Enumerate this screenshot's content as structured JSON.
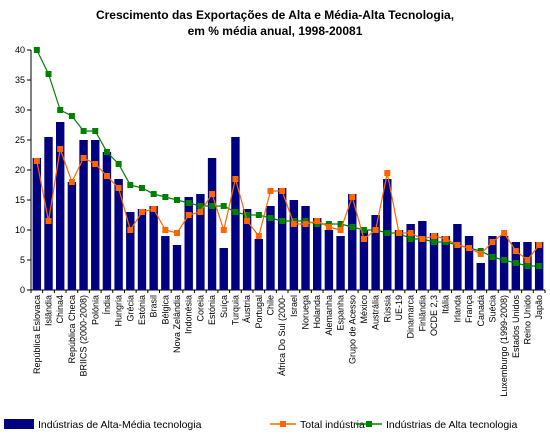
{
  "chart_data": {
    "type": "bar",
    "title_lines": [
      "Crescimento das Exportações de Alta e Média-Alta Tecnologia,",
      "em % média anual, 1998-20081"
    ],
    "xlabel": "",
    "ylabel": "",
    "ylim": [
      0,
      40
    ],
    "yticks": [
      0,
      5,
      10,
      15,
      20,
      25,
      30,
      35,
      40
    ],
    "grid": false,
    "legend_position": "bottom",
    "categories": [
      "República Eslovaca",
      "Islândia",
      "China4",
      "República Checa",
      "BRIICS (2000-2008)",
      "Polónia",
      "Índia",
      "Hungria",
      "Grécia",
      "Estónia",
      "Brasil",
      "Bélgica",
      "Nova Zelândia",
      "Indonésia",
      "Coreia",
      "Estónia",
      "Suíça",
      "Turquia",
      "Áustria",
      "Portugal",
      "Chile",
      "África Do Sul (2000-",
      "Israel",
      "Noruega",
      "Holanda",
      "Alemanha",
      "Espanha",
      "Grupo de Acesso",
      "México",
      "Austrália",
      "Rússia",
      "UE-19",
      "Dinamarca",
      "Finlândia",
      "OCDE 2,3",
      "Itália",
      "Irlanda",
      "França",
      "Canadá",
      "Suécia",
      "Luxemburgo (1999-2008)",
      "Estados Unidos",
      "Reino Unido",
      "Japão"
    ],
    "series": [
      {
        "name": "Indústrias de Alta-Média tecnologia",
        "type": "bar",
        "color": "#000080",
        "values": [
          22,
          25.5,
          28,
          18,
          25,
          25,
          23,
          18.5,
          13,
          13.5,
          14,
          9,
          7.5,
          15.5,
          16,
          22,
          7,
          25.5,
          13.5,
          8.5,
          14,
          17,
          15,
          14,
          12,
          10,
          9,
          16,
          10,
          12.5,
          18.5,
          10,
          11,
          11.5,
          9.5,
          9,
          11,
          9,
          4.5,
          9,
          9,
          8,
          8,
          8
        ]
      },
      {
        "name": "Total indústria",
        "type": "line",
        "color": "#ff6600",
        "values": [
          21.5,
          11.5,
          23.5,
          18,
          22,
          21,
          19,
          17,
          10,
          13,
          13.5,
          10,
          9.5,
          12.5,
          13,
          16,
          10,
          18.5,
          11.5,
          9,
          16.5,
          16.5,
          11,
          11,
          11.5,
          10.5,
          10,
          15.5,
          8.5,
          10,
          19.5,
          9.5,
          9.5,
          8.5,
          9,
          8.5,
          7.5,
          7,
          6,
          8,
          9.5,
          6.5,
          5,
          7.5
        ]
      },
      {
        "name": "Indústrias de Alta tecnologia",
        "type": "line",
        "color": "#008000",
        "values": [
          40,
          36,
          30,
          29,
          26.5,
          26.5,
          23,
          21,
          17.5,
          17,
          16,
          15.5,
          15,
          14.5,
          14,
          14,
          14,
          13,
          12.5,
          12.5,
          12,
          11.5,
          11.5,
          11.5,
          11,
          11,
          11,
          10.5,
          10,
          10,
          9.5,
          9.5,
          8.5,
          8.5,
          8,
          8,
          7.5,
          7,
          6.5,
          5.5,
          5,
          4.5,
          4,
          4
        ]
      }
    ]
  }
}
